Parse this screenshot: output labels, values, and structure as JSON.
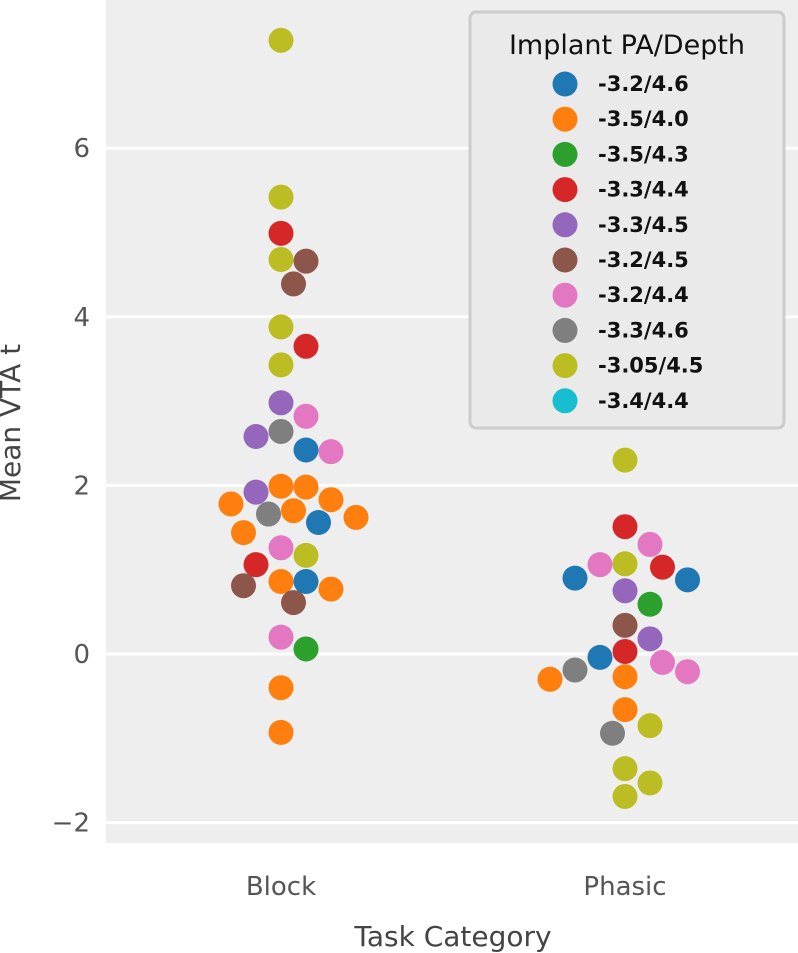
{
  "chart_data": {
    "type": "scatter",
    "subtype": "swarm",
    "title": "",
    "xlabel": "Task Category",
    "ylabel": "Mean VTA t",
    "categories": [
      "Block",
      "Phasic"
    ],
    "ylim": [
      -2.3,
      7.6
    ],
    "yticks": [
      -2,
      0,
      2,
      4,
      6
    ],
    "ytick_labels": [
      "−2",
      "0",
      "2",
      "4",
      "6"
    ],
    "grid": true,
    "legend": {
      "title": "Implant PA/Depth",
      "placement": "top-right",
      "entries": [
        {
          "label": "-3.2/4.6",
          "color": "#1f77b4"
        },
        {
          "label": "-3.5/4.0",
          "color": "#ff7f0e"
        },
        {
          "label": "-3.5/4.3",
          "color": "#2ca02c"
        },
        {
          "label": "-3.3/4.4",
          "color": "#d62728"
        },
        {
          "label": "-3.3/4.5",
          "color": "#9467bd"
        },
        {
          "label": "-3.2/4.5",
          "color": "#8c564b"
        },
        {
          "label": "-3.2/4.4",
          "color": "#e377c2"
        },
        {
          "label": "-3.3/4.6",
          "color": "#7f7f7f"
        },
        {
          "label": "-3.05/4.5",
          "color": "#bcbd22"
        },
        {
          "label": "-3.4/4.4",
          "color": "#17becf"
        }
      ]
    },
    "points": [
      {
        "category": "Block",
        "group": "-3.05/4.5",
        "y": 7.28
      },
      {
        "category": "Block",
        "group": "-3.05/4.5",
        "y": 5.42
      },
      {
        "category": "Block",
        "group": "-3.3/4.4",
        "y": 4.99
      },
      {
        "category": "Block",
        "group": "-3.2/4.5",
        "y": 4.66
      },
      {
        "category": "Block",
        "group": "-3.05/4.5",
        "y": 4.68
      },
      {
        "category": "Block",
        "group": "-3.2/4.5",
        "y": 4.39
      },
      {
        "category": "Block",
        "group": "-3.05/4.5",
        "y": 3.88
      },
      {
        "category": "Block",
        "group": "-3.3/4.4",
        "y": 3.65
      },
      {
        "category": "Block",
        "group": "-3.05/4.5",
        "y": 3.43
      },
      {
        "category": "Block",
        "group": "-3.3/4.5",
        "y": 2.98
      },
      {
        "category": "Block",
        "group": "-3.2/4.4",
        "y": 2.82
      },
      {
        "category": "Block",
        "group": "-3.3/4.6",
        "y": 2.64
      },
      {
        "category": "Block",
        "group": "-3.3/4.5",
        "y": 2.58
      },
      {
        "category": "Block",
        "group": "-3.2/4.6",
        "y": 2.42
      },
      {
        "category": "Block",
        "group": "-3.2/4.4",
        "y": 2.4
      },
      {
        "category": "Block",
        "group": "-3.5/4.0",
        "y": 1.99
      },
      {
        "category": "Block",
        "group": "-3.5/4.0",
        "y": 1.98
      },
      {
        "category": "Block",
        "group": "-3.3/4.5",
        "y": 1.92
      },
      {
        "category": "Block",
        "group": "-3.5/4.0",
        "y": 1.83
      },
      {
        "category": "Block",
        "group": "-3.5/4.0",
        "y": 1.78
      },
      {
        "category": "Block",
        "group": "-3.5/4.0",
        "y": 1.7
      },
      {
        "category": "Block",
        "group": "-3.3/4.6",
        "y": 1.66
      },
      {
        "category": "Block",
        "group": "-3.5/4.0",
        "y": 1.62
      },
      {
        "category": "Block",
        "group": "-3.2/4.6",
        "y": 1.56
      },
      {
        "category": "Block",
        "group": "-3.5/4.0",
        "y": 1.44
      },
      {
        "category": "Block",
        "group": "-3.2/4.4",
        "y": 1.26
      },
      {
        "category": "Block",
        "group": "-3.05/4.5",
        "y": 1.17
      },
      {
        "category": "Block",
        "group": "-3.3/4.4",
        "y": 1.06
      },
      {
        "category": "Block",
        "group": "-3.5/4.0",
        "y": 0.86
      },
      {
        "category": "Block",
        "group": "-3.2/4.6",
        "y": 0.86
      },
      {
        "category": "Block",
        "group": "-3.2/4.5",
        "y": 0.81
      },
      {
        "category": "Block",
        "group": "-3.5/4.0",
        "y": 0.77
      },
      {
        "category": "Block",
        "group": "-3.2/4.5",
        "y": 0.61
      },
      {
        "category": "Block",
        "group": "-3.2/4.4",
        "y": 0.2
      },
      {
        "category": "Block",
        "group": "-3.5/4.3",
        "y": 0.06
      },
      {
        "category": "Block",
        "group": "-3.5/4.0",
        "y": -0.4
      },
      {
        "category": "Block",
        "group": "-3.5/4.0",
        "y": -0.93
      },
      {
        "category": "Phasic",
        "group": "-3.05/4.5",
        "y": 2.3
      },
      {
        "category": "Phasic",
        "group": "-3.3/4.4",
        "y": 1.51
      },
      {
        "category": "Phasic",
        "group": "-3.2/4.4",
        "y": 1.3
      },
      {
        "category": "Phasic",
        "group": "-3.2/4.4",
        "y": 1.06
      },
      {
        "category": "Phasic",
        "group": "-3.05/4.5",
        "y": 1.07
      },
      {
        "category": "Phasic",
        "group": "-3.3/4.4",
        "y": 1.03
      },
      {
        "category": "Phasic",
        "group": "-3.2/4.6",
        "y": 0.9
      },
      {
        "category": "Phasic",
        "group": "-3.2/4.6",
        "y": 0.88
      },
      {
        "category": "Phasic",
        "group": "-3.3/4.5",
        "y": 0.75
      },
      {
        "category": "Phasic",
        "group": "-3.5/4.3",
        "y": 0.59
      },
      {
        "category": "Phasic",
        "group": "-3.2/4.5",
        "y": 0.34
      },
      {
        "category": "Phasic",
        "group": "-3.3/4.5",
        "y": 0.18
      },
      {
        "category": "Phasic",
        "group": "-3.3/4.4",
        "y": 0.03
      },
      {
        "category": "Phasic",
        "group": "-3.2/4.6",
        "y": -0.04
      },
      {
        "category": "Phasic",
        "group": "-3.2/4.4",
        "y": -0.1
      },
      {
        "category": "Phasic",
        "group": "-3.3/4.6",
        "y": -0.19
      },
      {
        "category": "Phasic",
        "group": "-3.2/4.4",
        "y": -0.21
      },
      {
        "category": "Phasic",
        "group": "-3.5/4.0",
        "y": -0.27
      },
      {
        "category": "Phasic",
        "group": "-3.5/4.0",
        "y": -0.3
      },
      {
        "category": "Phasic",
        "group": "-3.5/4.0",
        "y": -0.66
      },
      {
        "category": "Phasic",
        "group": "-3.05/4.5",
        "y": -0.85
      },
      {
        "category": "Phasic",
        "group": "-3.3/4.6",
        "y": -0.94
      },
      {
        "category": "Phasic",
        "group": "-3.05/4.5",
        "y": -1.36
      },
      {
        "category": "Phasic",
        "group": "-3.05/4.5",
        "y": -1.53
      },
      {
        "category": "Phasic",
        "group": "-3.05/4.5",
        "y": -1.69
      }
    ]
  }
}
